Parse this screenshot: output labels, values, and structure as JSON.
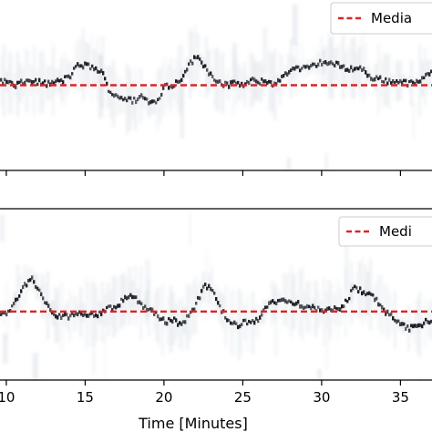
{
  "chart_data": [
    {
      "type": "heatmap",
      "panel": "top",
      "xlabel": "",
      "ylabel": "",
      "xlim": [
        9.6,
        37.0
      ],
      "ylim": [
        0,
        1
      ],
      "grid": false,
      "legend": {
        "placement": "top-right",
        "entries": [
          {
            "label": "Media",
            "style": "dashed",
            "color": "#d62728"
          }
        ]
      },
      "median_level": 0.5,
      "peak_track": {
        "x": [
          9.6,
          10.0,
          10.5,
          11.0,
          11.5,
          12.0,
          12.5,
          13.0,
          13.5,
          14.0,
          14.5,
          15.0,
          15.5,
          16.0,
          16.5,
          17.0,
          17.5,
          18.0,
          18.5,
          19.0,
          19.5,
          20.0,
          20.5,
          21.0,
          21.5,
          22.0,
          22.5,
          23.0,
          23.5,
          24.0,
          24.5,
          25.0,
          25.5,
          26.0,
          26.5,
          27.0,
          27.5,
          28.0,
          28.5,
          29.0,
          29.5,
          30.0,
          30.5,
          31.0,
          31.5,
          32.0,
          32.5,
          33.0,
          33.5,
          34.0,
          34.5,
          35.0,
          35.5,
          36.0,
          36.5,
          37.0
        ],
        "y": [
          0.53,
          0.52,
          0.5,
          0.52,
          0.53,
          0.52,
          0.51,
          0.52,
          0.53,
          0.56,
          0.62,
          0.62,
          0.6,
          0.58,
          0.46,
          0.44,
          0.42,
          0.41,
          0.44,
          0.4,
          0.41,
          0.5,
          0.5,
          0.54,
          0.62,
          0.67,
          0.62,
          0.55,
          0.52,
          0.5,
          0.52,
          0.5,
          0.53,
          0.52,
          0.53,
          0.5,
          0.56,
          0.6,
          0.6,
          0.6,
          0.62,
          0.64,
          0.63,
          0.62,
          0.6,
          0.6,
          0.6,
          0.55,
          0.54,
          0.53,
          0.52,
          0.53,
          0.51,
          0.52,
          0.55,
          0.58
        ]
      }
    },
    {
      "type": "heatmap",
      "panel": "bottom",
      "xlabel": "Time [Minutes]",
      "ylabel": "",
      "xlim": [
        9.6,
        37.0
      ],
      "ylim": [
        0,
        1
      ],
      "grid": false,
      "xticks": [
        10,
        15,
        20,
        25,
        30,
        35
      ],
      "legend": {
        "placement": "top-right",
        "entries": [
          {
            "label": "Medi",
            "style": "dashed",
            "color": "#d62728"
          }
        ]
      },
      "median_level": 0.4,
      "peak_track": {
        "x": [
          9.6,
          10.0,
          10.5,
          11.0,
          11.5,
          12.0,
          12.5,
          13.0,
          13.5,
          14.0,
          14.5,
          15.0,
          15.5,
          16.0,
          16.5,
          17.0,
          17.5,
          18.0,
          18.5,
          19.0,
          19.5,
          20.0,
          20.5,
          21.0,
          21.5,
          22.0,
          22.5,
          23.0,
          23.5,
          24.0,
          24.5,
          25.0,
          25.5,
          26.0,
          26.5,
          27.0,
          27.5,
          28.0,
          28.5,
          29.0,
          29.5,
          30.0,
          30.5,
          31.0,
          31.5,
          32.0,
          32.5,
          33.0,
          33.5,
          34.0,
          34.5,
          35.0,
          35.5,
          36.0,
          36.5,
          37.0
        ],
        "y": [
          0.38,
          0.4,
          0.46,
          0.54,
          0.6,
          0.52,
          0.44,
          0.38,
          0.37,
          0.38,
          0.4,
          0.39,
          0.38,
          0.4,
          0.42,
          0.44,
          0.48,
          0.5,
          0.44,
          0.42,
          0.38,
          0.34,
          0.36,
          0.32,
          0.38,
          0.45,
          0.56,
          0.52,
          0.42,
          0.35,
          0.32,
          0.34,
          0.33,
          0.36,
          0.44,
          0.46,
          0.47,
          0.46,
          0.45,
          0.43,
          0.42,
          0.4,
          0.41,
          0.42,
          0.46,
          0.54,
          0.52,
          0.5,
          0.46,
          0.4,
          0.36,
          0.32,
          0.3,
          0.32,
          0.34,
          0.36
        ]
      }
    }
  ]
}
